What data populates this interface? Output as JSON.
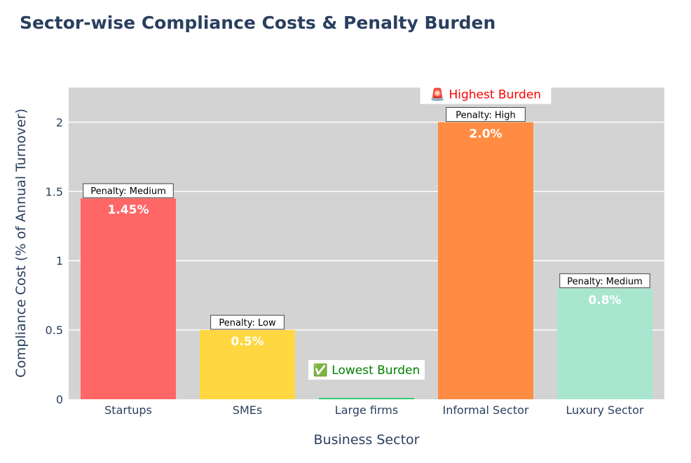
{
  "chart_data": {
    "type": "bar",
    "title": "Sector-wise Compliance Costs & Penalty Burden",
    "xlabel": "Business Sector",
    "ylabel": "Compliance Cost (% of Annual Turnover)",
    "ylim": [
      0,
      2.25
    ],
    "yticks": [
      0,
      0.5,
      1,
      1.5,
      2
    ],
    "ytick_labels": [
      "0",
      "0.5",
      "1",
      "1.5",
      "2"
    ],
    "grid": true,
    "categories": [
      "Startups",
      "SMEs",
      "Large firms",
      "Informal Sector",
      "Luxury Sector"
    ],
    "values": [
      1.45,
      0.5,
      0.01,
      2.0,
      0.8
    ],
    "data_labels": [
      "1.45%",
      "0.5%",
      "",
      "2.0%",
      "0.8%"
    ],
    "penalty_labels": [
      "Penalty: Medium",
      "Penalty: Low",
      "",
      "Penalty: High",
      "Penalty: Medium"
    ],
    "colors": [
      "#ff6666",
      "#ffd740",
      "#2ecc71",
      "#ff8c42",
      "#a8e6cf"
    ],
    "highlights": [
      {
        "category": "Informal Sector",
        "text": "🚨 Highest Burden",
        "color": "#ff0000"
      },
      {
        "category": "Large firms",
        "text": "✅ Lowest Burden",
        "color": "#008000"
      }
    ]
  }
}
